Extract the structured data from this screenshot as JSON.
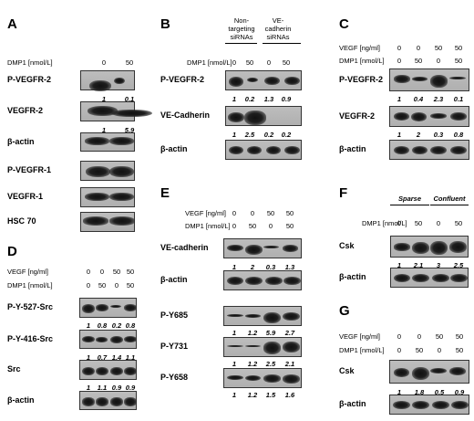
{
  "panels": [
    {
      "letter": "A",
      "conds": [
        {
          "label": "DMP1 [nmol/L]",
          "values": [
            "0",
            "50"
          ]
        }
      ],
      "rows": [
        {
          "label": "P-VEGFR-2",
          "quant": [
            "1",
            "0.1"
          ]
        },
        {
          "label": "VEGFR-2",
          "quant": [
            "1",
            "5.9"
          ]
        },
        {
          "label": "β-actin"
        },
        {
          "label": "P-VEGFR-1"
        },
        {
          "label": "VEGFR-1"
        },
        {
          "label": "HSC 70"
        }
      ]
    },
    {
      "letter": "B",
      "headers": [
        "Non-\ntargeting\nsiRNAs",
        "VE-\ncadherin\nsiRNAs"
      ],
      "conds": [
        {
          "label": "DMP1 [nmol/L]",
          "values": [
            "0",
            "50",
            "0",
            "50"
          ]
        }
      ],
      "rows": [
        {
          "label": "P-VEGFR-2",
          "quant": [
            "1",
            "0.2",
            "1.3",
            "0.9"
          ]
        },
        {
          "label": "VE-Cadherin",
          "quant": [
            "1",
            "2.5",
            "0.2",
            "0.2"
          ]
        },
        {
          "label": "β-actin"
        }
      ]
    },
    {
      "letter": "C",
      "conds": [
        {
          "label": "VEGF [ng/ml]",
          "values": [
            "0",
            "0",
            "50",
            "50"
          ]
        },
        {
          "label": "DMP1 [nmol/L]",
          "values": [
            "0",
            "50",
            "0",
            "50"
          ]
        }
      ],
      "rows": [
        {
          "label": "P-VEGFR-2",
          "quant": [
            "1",
            "0.4",
            "2.3",
            "0.1"
          ]
        },
        {
          "label": "VEGFR-2",
          "quant": [
            "1",
            "2",
            "0.3",
            "0.8"
          ]
        },
        {
          "label": "β-actin"
        }
      ]
    },
    {
      "letter": "D",
      "conds": [
        {
          "label": "VEGF [ng/ml]",
          "values": [
            "0",
            "0",
            "50",
            "50"
          ]
        },
        {
          "label": "DMP1 [nmol/L]",
          "values": [
            "0",
            "50",
            "0",
            "50"
          ]
        }
      ],
      "rows": [
        {
          "label": "P-Y-527-Src",
          "quant": [
            "1",
            "0.8",
            "0.2",
            "0.8"
          ]
        },
        {
          "label": "P-Y-416-Src",
          "quant": [
            "1",
            "0.7",
            "1.4",
            "1.1"
          ]
        },
        {
          "label": "Src",
          "quant": [
            "1",
            "1.1",
            "0.9",
            "0.9"
          ]
        },
        {
          "label": "β-actin"
        }
      ]
    },
    {
      "letter": "E",
      "conds": [
        {
          "label": "VEGF [ng/ml]",
          "values": [
            "0",
            "0",
            "50",
            "50"
          ]
        },
        {
          "label": "DMP1 [nmol/L]",
          "values": [
            "0",
            "50",
            "0",
            "50"
          ]
        }
      ],
      "rows": [
        {
          "label": "VE-cadherin",
          "quant": [
            "1",
            "2",
            "0.3",
            "1.3"
          ]
        },
        {
          "label": "β-actin"
        },
        {
          "label": "P-Y685",
          "quant": [
            "1",
            "1.2",
            "5.9",
            "2.7"
          ]
        },
        {
          "label": "P-Y731",
          "quant": [
            "1",
            "1.2",
            "2.5",
            "2.1"
          ]
        },
        {
          "label": "P-Y658",
          "quant": [
            "1",
            "1.2",
            "1.5",
            "1.6"
          ]
        }
      ]
    },
    {
      "letter": "F",
      "headers": [
        "Sparse",
        "Confluent"
      ],
      "conds": [
        {
          "label": "DMP1 [nmol/L]",
          "values": [
            "0",
            "50",
            "0",
            "50"
          ]
        }
      ],
      "rows": [
        {
          "label": "Csk",
          "quant": [
            "1",
            "2.1",
            "3",
            "2.5"
          ]
        },
        {
          "label": "β-actin"
        }
      ]
    },
    {
      "letter": "G",
      "conds": [
        {
          "label": "VEGF [ng/ml]",
          "values": [
            "0",
            "0",
            "50",
            "50"
          ]
        },
        {
          "label": "DMP1 [nmol/L]",
          "values": [
            "0",
            "50",
            "0",
            "50"
          ]
        }
      ],
      "rows": [
        {
          "label": "Csk",
          "quant": [
            "1",
            "1.8",
            "0.5",
            "0.9"
          ]
        },
        {
          "label": "β-actin"
        }
      ]
    }
  ]
}
